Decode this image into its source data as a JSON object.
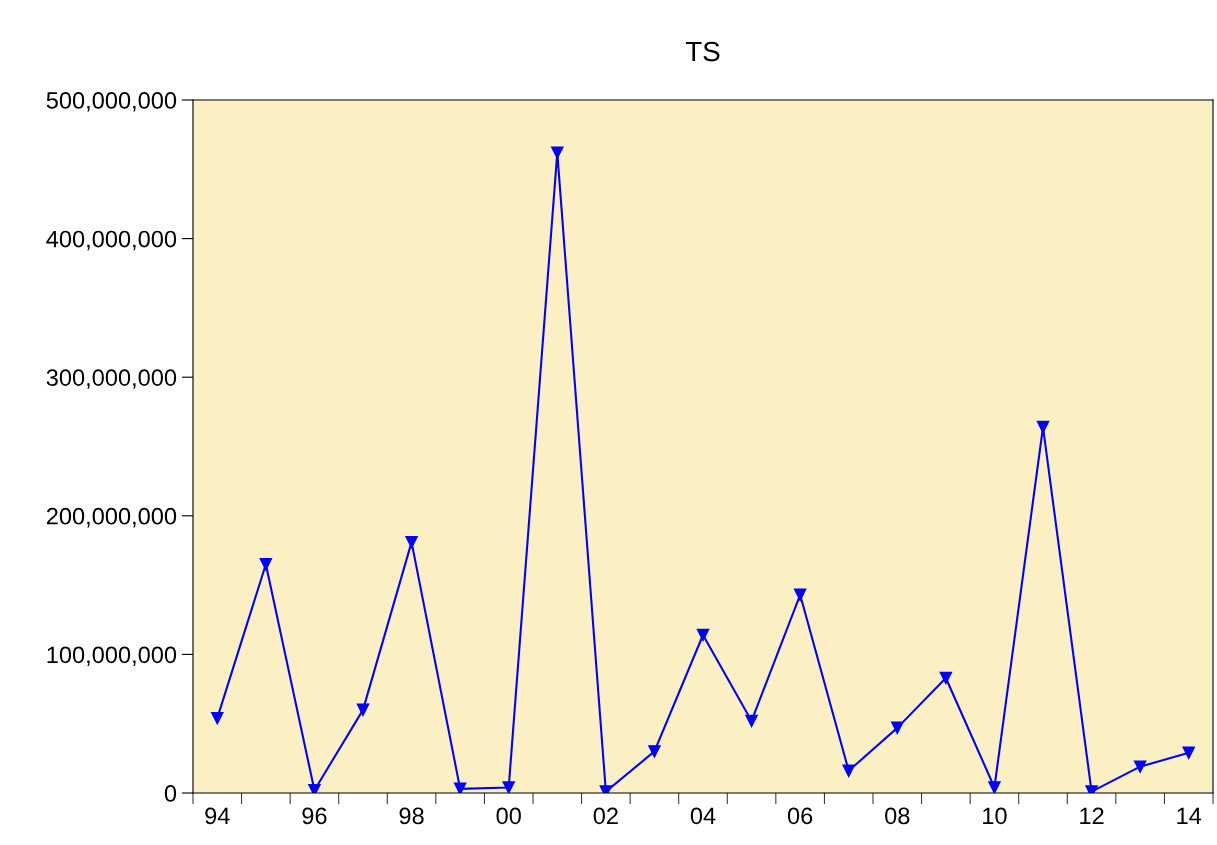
{
  "chart_data": {
    "type": "line",
    "title": "TS",
    "categories": [
      "94",
      null,
      "96",
      null,
      "98",
      null,
      "00",
      null,
      "02",
      null,
      "04",
      null,
      "06",
      null,
      "08",
      null,
      "10",
      null,
      "12",
      null,
      "14"
    ],
    "series": [
      {
        "color": "#0000ff",
        "values": [
          54000000,
          165000000,
          2000000,
          60000000,
          181000000,
          3000000,
          4000000,
          462000000,
          1000000,
          30000000,
          114000000,
          52000000,
          143000000,
          16000000,
          47000000,
          83000000,
          4000000,
          264000000,
          1000000,
          19000000,
          29000000
        ]
      }
    ],
    "ylim": [
      0,
      500000000
    ],
    "yticks": [
      {
        "value": 0,
        "label": "0"
      },
      {
        "value": 100000000,
        "label": "100,000,000"
      },
      {
        "value": 200000000,
        "label": "200,000,000"
      },
      {
        "value": 300000000,
        "label": "300,000,000"
      },
      {
        "value": 400000000,
        "label": "400,000,000"
      },
      {
        "value": 500000000,
        "label": "500,000,000"
      }
    ],
    "grid": false,
    "marker": "triangle",
    "line_style": "solid"
  }
}
